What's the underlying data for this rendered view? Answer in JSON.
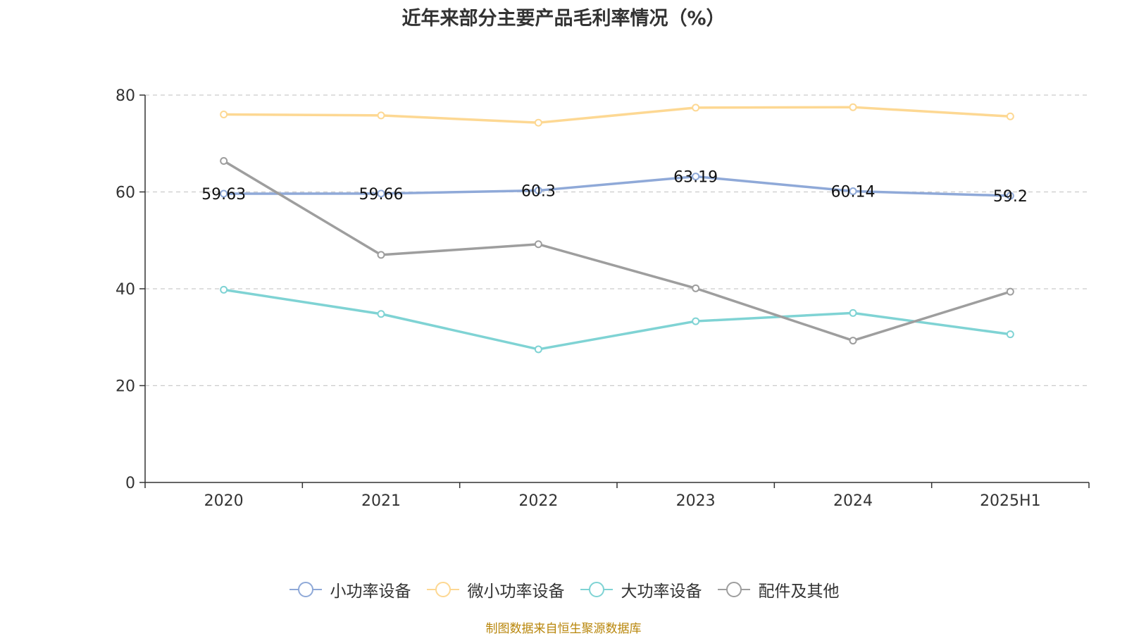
{
  "title": "近年来部分主要产品毛利率情况（%）",
  "source": "制图数据来自恒生聚源数据库",
  "chart_data": {
    "type": "line",
    "title": "近年来部分主要产品毛利率情况（%）",
    "categories": [
      "2020",
      "2021",
      "2022",
      "2023",
      "2024",
      "2025H1"
    ],
    "ylim": [
      0,
      80
    ],
    "yticks": [
      0,
      20,
      40,
      60,
      80
    ],
    "grid": "horizontal-dashed",
    "legend": "bottom",
    "series": [
      {
        "name": "小功率设备",
        "color": "#8fa9d8",
        "values": [
          59.63,
          59.66,
          60.3,
          63.19,
          60.14,
          59.2
        ],
        "labels": [
          "59.63",
          "59.66",
          "60.3",
          "63.19",
          "60.14",
          "59.2"
        ]
      },
      {
        "name": "微小功率设备",
        "color": "#fdd893",
        "values": [
          76.0,
          75.8,
          74.3,
          77.4,
          77.5,
          75.6
        ]
      },
      {
        "name": "大功率设备",
        "color": "#7fd3d4",
        "values": [
          39.8,
          34.8,
          27.5,
          33.3,
          35.0,
          30.6
        ]
      },
      {
        "name": "配件及其他",
        "color": "#9e9e9e",
        "values": [
          66.4,
          47.0,
          49.2,
          40.1,
          29.3,
          39.4
        ]
      }
    ]
  }
}
